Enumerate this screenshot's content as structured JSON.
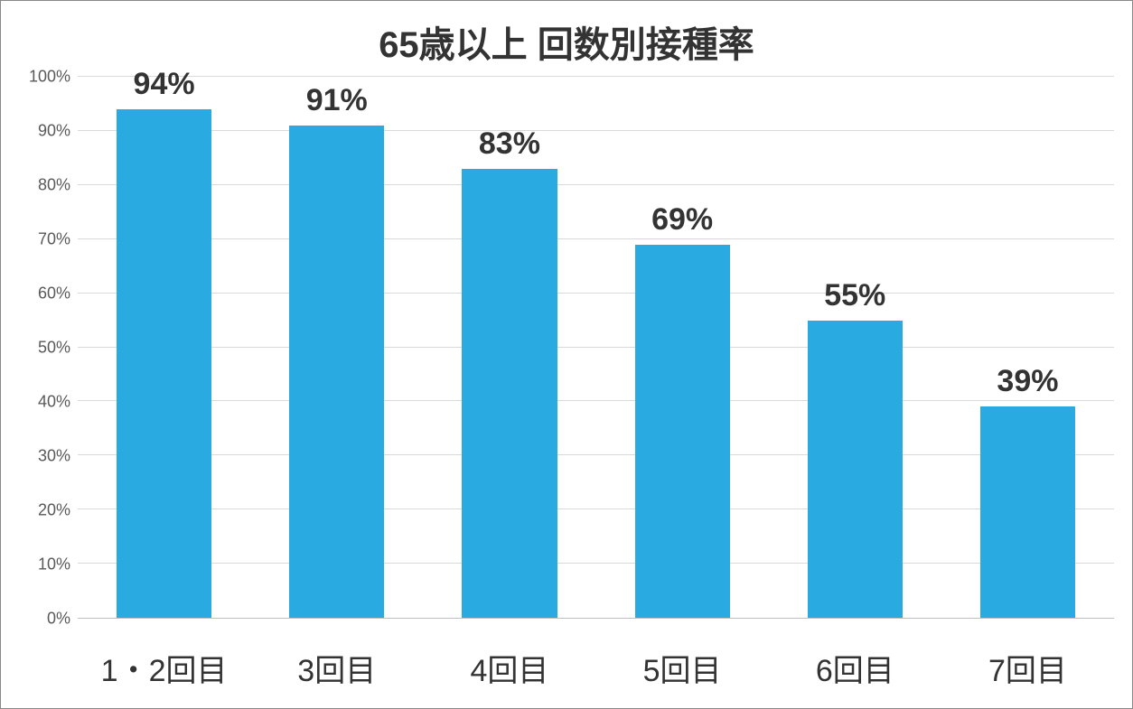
{
  "chart": {
    "type": "bar",
    "title": "65歳以上 回数別接種率",
    "title_fontsize": 40,
    "title_color": "#333333",
    "categories": [
      "1・2回目",
      "3回目",
      "4回目",
      "5回目",
      "6回目",
      "7回目"
    ],
    "values": [
      94,
      91,
      83,
      69,
      55,
      39
    ],
    "value_labels": [
      "94%",
      "91%",
      "83%",
      "69%",
      "55%",
      "39%"
    ],
    "data_label_fontsize": 34,
    "data_label_color": "#333333",
    "bar_color": "#29abe2",
    "bar_width_ratio": 0.55,
    "ylim": [
      0,
      100
    ],
    "ytick_step": 10,
    "ytick_labels": [
      "0%",
      "10%",
      "20%",
      "30%",
      "40%",
      "50%",
      "60%",
      "70%",
      "80%",
      "90%",
      "100%"
    ],
    "ytick_fontsize": 18,
    "ytick_color": "#595959",
    "xtick_fontsize": 34,
    "xtick_color": "#333333",
    "grid_color": "#d9d9d9",
    "axis_line_color": "#bfbfbf",
    "background_color": "#ffffff",
    "border_color": "#888888"
  }
}
